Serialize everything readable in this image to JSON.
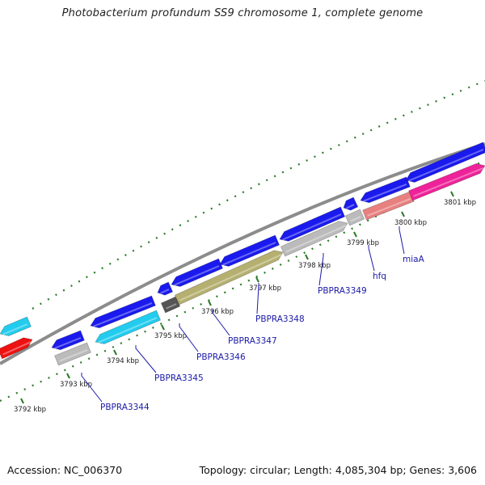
{
  "title": "Photobacterium profundum SS9 chromosome 1, complete genome",
  "footer": {
    "accession": "Accession: NC_006370",
    "topology": "Topology: circular; Length: 4,085,304 bp; Genes: 3,606"
  },
  "kbp_ticks": [
    {
      "label": "3792 kbp",
      "kbp": 3792
    },
    {
      "label": "3793 kbp",
      "kbp": 3793
    },
    {
      "label": "3794 kbp",
      "kbp": 3794
    },
    {
      "label": "3795 kbp",
      "kbp": 3795
    },
    {
      "label": "3796 kbp",
      "kbp": 3796
    },
    {
      "label": "3797 kbp",
      "kbp": 3797
    },
    {
      "label": "3798 kbp",
      "kbp": 3798
    },
    {
      "label": "3799 kbp",
      "kbp": 3799
    },
    {
      "label": "3800 kbp",
      "kbp": 3800
    },
    {
      "label": "3801 kbp",
      "kbp": 3801
    }
  ],
  "gene_labels": [
    {
      "name": "PBPRA3344"
    },
    {
      "name": "PBPRA3345"
    },
    {
      "name": "PBPRA3346"
    },
    {
      "name": "PBPRA3347"
    },
    {
      "name": "PBPRA3348"
    },
    {
      "name": "PBPRA3349"
    },
    {
      "name": "hfq"
    },
    {
      "name": "miaA"
    }
  ],
  "colors": {
    "backbone": "#8c8c8c",
    "cds": "#1a1aee",
    "cyan": "#22ccee",
    "red": "#ee1111",
    "grey": "#bbbbbb",
    "dark_grey": "#555555",
    "olive": "#b5b070",
    "salmon": "#e88080",
    "magenta": "#ee2299",
    "tick": "#2a7a2a",
    "label_line": "#1a1aa8"
  }
}
